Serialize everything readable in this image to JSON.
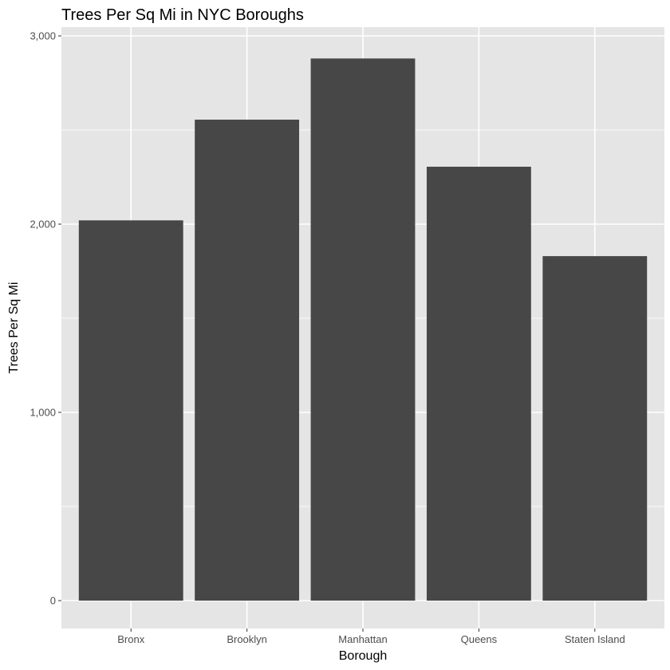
{
  "chart_data": {
    "type": "bar",
    "title": "Trees Per Sq Mi in NYC Boroughs",
    "xlabel": "Borough",
    "ylabel": "Trees Per Sq Mi",
    "categories": [
      "Bronx",
      "Brooklyn",
      "Manhattan",
      "Queens",
      "Staten Island"
    ],
    "values": [
      2020,
      2555,
      2880,
      2305,
      1830
    ],
    "ylim": [
      0,
      3000
    ],
    "yticks": [
      0,
      1000,
      2000,
      3000
    ],
    "ytick_labels": [
      "0",
      "1,000",
      "2,000",
      "3,000"
    ],
    "grid": true,
    "legend": "none",
    "colors": {
      "bar": "#474747",
      "panel": "#e5e5e5",
      "grid": "#ffffff"
    }
  }
}
